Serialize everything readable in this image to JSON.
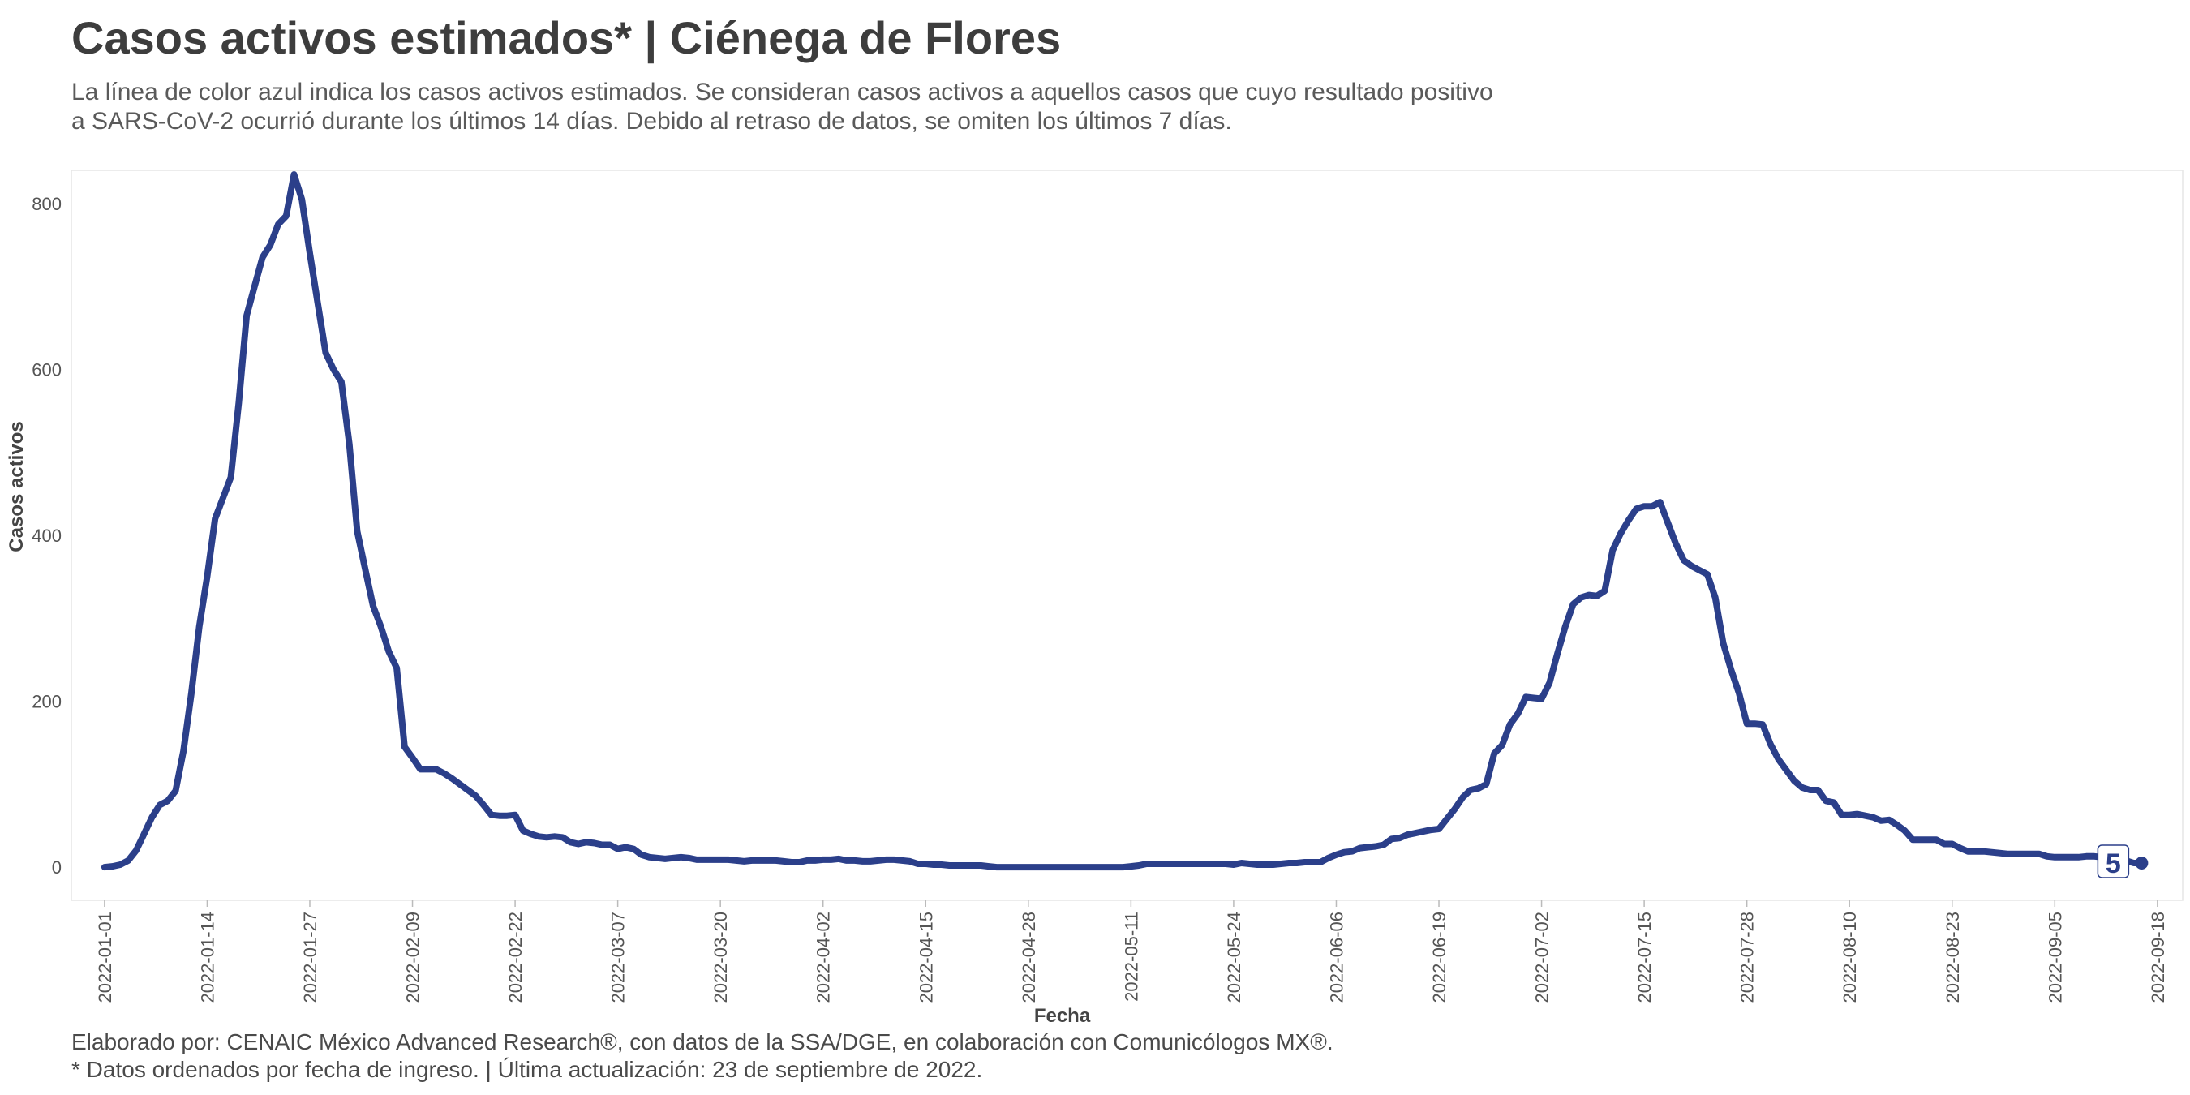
{
  "title": "Casos activos estimados* | Ciénega de Flores",
  "subtitle_lines": [
    "La línea de color azul indica los casos activos estimados. Se consideran casos activos a aquellos casos que cuyo resultado positivo",
    "a SARS-CoV-2 ocurrió durante los últimos 14 días. Debido al retraso de datos, se omiten los últimos 7 días."
  ],
  "caption_lines": [
    "Elaborado por: CENAIC México Advanced Research®, con datos de la SSA/DGE, en colaboración con Comunicólogos MX®.",
    "* Datos ordenados por fecha de ingreso. | Última actualización: 23 de septiembre de 2022."
  ],
  "chart_data": {
    "type": "line",
    "xlabel": "Fecha",
    "ylabel": "Casos activos",
    "ylim": [
      -40,
      840
    ],
    "yticks": [
      0,
      200,
      400,
      600,
      800
    ],
    "x_start": "2022-01-01",
    "xticks": [
      "2022-01-01",
      "2022-01-14",
      "2022-01-27",
      "2022-02-09",
      "2022-02-22",
      "2022-03-07",
      "2022-03-20",
      "2022-04-02",
      "2022-04-15",
      "2022-04-28",
      "2022-05-11",
      "2022-05-24",
      "2022-06-06",
      "2022-06-19",
      "2022-07-02",
      "2022-07-15",
      "2022-07-28",
      "2022-08-10",
      "2022-08-23",
      "2022-09-05",
      "2022-09-18"
    ],
    "grid": false,
    "line_color": "#2b3f8a",
    "last_label": "5",
    "series": [
      {
        "points": [
          [
            "2022-01-01",
            0
          ],
          [
            "2022-01-02",
            1
          ],
          [
            "2022-01-03",
            3
          ],
          [
            "2022-01-04",
            8
          ],
          [
            "2022-01-05",
            20
          ],
          [
            "2022-01-06",
            40
          ],
          [
            "2022-01-07",
            60
          ],
          [
            "2022-01-08",
            75
          ],
          [
            "2022-01-09",
            80
          ],
          [
            "2022-01-10",
            92
          ],
          [
            "2022-01-11",
            140
          ],
          [
            "2022-01-12",
            210
          ],
          [
            "2022-01-13",
            290
          ],
          [
            "2022-01-14",
            350
          ],
          [
            "2022-01-15",
            420
          ],
          [
            "2022-01-16",
            445
          ],
          [
            "2022-01-17",
            470
          ],
          [
            "2022-01-18",
            560
          ],
          [
            "2022-01-19",
            665
          ],
          [
            "2022-01-20",
            700
          ],
          [
            "2022-01-21",
            735
          ],
          [
            "2022-01-22",
            750
          ],
          [
            "2022-01-23",
            775
          ],
          [
            "2022-01-24",
            785
          ],
          [
            "2022-01-25",
            835
          ],
          [
            "2022-01-26",
            805
          ],
          [
            "2022-01-27",
            740
          ],
          [
            "2022-01-28",
            680
          ],
          [
            "2022-01-29",
            620
          ],
          [
            "2022-01-30",
            600
          ],
          [
            "2022-01-31",
            585
          ],
          [
            "2022-02-01",
            510
          ],
          [
            "2022-02-02",
            405
          ],
          [
            "2022-02-03",
            360
          ],
          [
            "2022-02-04",
            315
          ],
          [
            "2022-02-05",
            290
          ],
          [
            "2022-02-06",
            260
          ],
          [
            "2022-02-07",
            240
          ],
          [
            "2022-02-08",
            145
          ],
          [
            "2022-02-09",
            132
          ],
          [
            "2022-02-10",
            118
          ],
          [
            "2022-02-11",
            118
          ],
          [
            "2022-02-12",
            118
          ],
          [
            "2022-02-13",
            113
          ],
          [
            "2022-02-14",
            107
          ],
          [
            "2022-02-15",
            100
          ],
          [
            "2022-02-16",
            93
          ],
          [
            "2022-02-17",
            86
          ],
          [
            "2022-02-18",
            75
          ],
          [
            "2022-02-19",
            63
          ],
          [
            "2022-02-20",
            62
          ],
          [
            "2022-02-21",
            62
          ],
          [
            "2022-02-22",
            63
          ],
          [
            "2022-02-23",
            44
          ],
          [
            "2022-02-24",
            40
          ],
          [
            "2022-02-25",
            37
          ],
          [
            "2022-02-26",
            36
          ],
          [
            "2022-02-27",
            37
          ],
          [
            "2022-02-28",
            36
          ],
          [
            "2022-03-01",
            30
          ],
          [
            "2022-03-02",
            28
          ],
          [
            "2022-03-03",
            30
          ],
          [
            "2022-03-04",
            29
          ],
          [
            "2022-03-05",
            27
          ],
          [
            "2022-03-06",
            27
          ],
          [
            "2022-03-07",
            22
          ],
          [
            "2022-03-08",
            24
          ],
          [
            "2022-03-09",
            22
          ],
          [
            "2022-03-10",
            15
          ],
          [
            "2022-03-11",
            12
          ],
          [
            "2022-03-12",
            11
          ],
          [
            "2022-03-13",
            10
          ],
          [
            "2022-03-14",
            11
          ],
          [
            "2022-03-15",
            12
          ],
          [
            "2022-03-16",
            11
          ],
          [
            "2022-03-17",
            9
          ],
          [
            "2022-03-18",
            9
          ],
          [
            "2022-03-19",
            9
          ],
          [
            "2022-03-20",
            9
          ],
          [
            "2022-03-21",
            9
          ],
          [
            "2022-03-22",
            8
          ],
          [
            "2022-03-23",
            7
          ],
          [
            "2022-03-24",
            8
          ],
          [
            "2022-03-25",
            8
          ],
          [
            "2022-03-26",
            8
          ],
          [
            "2022-03-27",
            8
          ],
          [
            "2022-03-28",
            7
          ],
          [
            "2022-03-29",
            6
          ],
          [
            "2022-03-30",
            6
          ],
          [
            "2022-03-31",
            8
          ],
          [
            "2022-04-01",
            8
          ],
          [
            "2022-04-02",
            9
          ],
          [
            "2022-04-03",
            9
          ],
          [
            "2022-04-04",
            10
          ],
          [
            "2022-04-05",
            8
          ],
          [
            "2022-04-06",
            8
          ],
          [
            "2022-04-07",
            7
          ],
          [
            "2022-04-08",
            7
          ],
          [
            "2022-04-09",
            8
          ],
          [
            "2022-04-10",
            9
          ],
          [
            "2022-04-11",
            9
          ],
          [
            "2022-04-12",
            8
          ],
          [
            "2022-04-13",
            7
          ],
          [
            "2022-04-14",
            4
          ],
          [
            "2022-04-15",
            4
          ],
          [
            "2022-04-16",
            3
          ],
          [
            "2022-04-17",
            3
          ],
          [
            "2022-04-18",
            2
          ],
          [
            "2022-04-19",
            2
          ],
          [
            "2022-04-20",
            2
          ],
          [
            "2022-04-21",
            2
          ],
          [
            "2022-04-22",
            2
          ],
          [
            "2022-04-23",
            1
          ],
          [
            "2022-04-24",
            0
          ],
          [
            "2022-04-25",
            0
          ],
          [
            "2022-04-26",
            0
          ],
          [
            "2022-04-27",
            0
          ],
          [
            "2022-04-28",
            0
          ],
          [
            "2022-04-29",
            0
          ],
          [
            "2022-04-30",
            0
          ],
          [
            "2022-05-01",
            0
          ],
          [
            "2022-05-02",
            0
          ],
          [
            "2022-05-03",
            0
          ],
          [
            "2022-05-04",
            0
          ],
          [
            "2022-05-05",
            0
          ],
          [
            "2022-05-06",
            0
          ],
          [
            "2022-05-07",
            0
          ],
          [
            "2022-05-08",
            0
          ],
          [
            "2022-05-09",
            0
          ],
          [
            "2022-05-10",
            0
          ],
          [
            "2022-05-11",
            1
          ],
          [
            "2022-05-12",
            2
          ],
          [
            "2022-05-13",
            4
          ],
          [
            "2022-05-14",
            4
          ],
          [
            "2022-05-15",
            4
          ],
          [
            "2022-05-16",
            4
          ],
          [
            "2022-05-17",
            4
          ],
          [
            "2022-05-18",
            4
          ],
          [
            "2022-05-19",
            4
          ],
          [
            "2022-05-20",
            4
          ],
          [
            "2022-05-21",
            4
          ],
          [
            "2022-05-22",
            4
          ],
          [
            "2022-05-23",
            4
          ],
          [
            "2022-05-24",
            3
          ],
          [
            "2022-05-25",
            5
          ],
          [
            "2022-05-26",
            4
          ],
          [
            "2022-05-27",
            3
          ],
          [
            "2022-05-28",
            3
          ],
          [
            "2022-05-29",
            3
          ],
          [
            "2022-05-30",
            4
          ],
          [
            "2022-05-31",
            5
          ],
          [
            "2022-06-01",
            5
          ],
          [
            "2022-06-02",
            6
          ],
          [
            "2022-06-03",
            6
          ],
          [
            "2022-06-04",
            6
          ],
          [
            "2022-06-05",
            11
          ],
          [
            "2022-06-06",
            15
          ],
          [
            "2022-06-07",
            18
          ],
          [
            "2022-06-08",
            19
          ],
          [
            "2022-06-09",
            23
          ],
          [
            "2022-06-10",
            24
          ],
          [
            "2022-06-11",
            25
          ],
          [
            "2022-06-12",
            27
          ],
          [
            "2022-06-13",
            34
          ],
          [
            "2022-06-14",
            35
          ],
          [
            "2022-06-15",
            39
          ],
          [
            "2022-06-16",
            41
          ],
          [
            "2022-06-17",
            43
          ],
          [
            "2022-06-18",
            45
          ],
          [
            "2022-06-19",
            46
          ],
          [
            "2022-06-20",
            58
          ],
          [
            "2022-06-21",
            70
          ],
          [
            "2022-06-22",
            84
          ],
          [
            "2022-06-23",
            93
          ],
          [
            "2022-06-24",
            95
          ],
          [
            "2022-06-25",
            100
          ],
          [
            "2022-06-26",
            137
          ],
          [
            "2022-06-27",
            147
          ],
          [
            "2022-06-28",
            172
          ],
          [
            "2022-06-29",
            185
          ],
          [
            "2022-06-30",
            205
          ],
          [
            "2022-07-01",
            204
          ],
          [
            "2022-07-02",
            203
          ],
          [
            "2022-07-03",
            222
          ],
          [
            "2022-07-04",
            257
          ],
          [
            "2022-07-05",
            290
          ],
          [
            "2022-07-06",
            317
          ],
          [
            "2022-07-07",
            325
          ],
          [
            "2022-07-08",
            328
          ],
          [
            "2022-07-09",
            327
          ],
          [
            "2022-07-10",
            333
          ],
          [
            "2022-07-11",
            382
          ],
          [
            "2022-07-12",
            402
          ],
          [
            "2022-07-13",
            418
          ],
          [
            "2022-07-14",
            432
          ],
          [
            "2022-07-15",
            435
          ],
          [
            "2022-07-16",
            435
          ],
          [
            "2022-07-17",
            440
          ],
          [
            "2022-07-18",
            415
          ],
          [
            "2022-07-19",
            390
          ],
          [
            "2022-07-20",
            370
          ],
          [
            "2022-07-21",
            363
          ],
          [
            "2022-07-22",
            358
          ],
          [
            "2022-07-23",
            353
          ],
          [
            "2022-07-24",
            325
          ],
          [
            "2022-07-25",
            270
          ],
          [
            "2022-07-26",
            238
          ],
          [
            "2022-07-27",
            210
          ],
          [
            "2022-07-28",
            173
          ],
          [
            "2022-07-29",
            173
          ],
          [
            "2022-07-30",
            172
          ],
          [
            "2022-07-31",
            148
          ],
          [
            "2022-08-01",
            130
          ],
          [
            "2022-08-02",
            117
          ],
          [
            "2022-08-03",
            104
          ],
          [
            "2022-08-04",
            96
          ],
          [
            "2022-08-05",
            93
          ],
          [
            "2022-08-06",
            93
          ],
          [
            "2022-08-07",
            80
          ],
          [
            "2022-08-08",
            78
          ],
          [
            "2022-08-09",
            63
          ],
          [
            "2022-08-10",
            63
          ],
          [
            "2022-08-11",
            64
          ],
          [
            "2022-08-12",
            62
          ],
          [
            "2022-08-13",
            60
          ],
          [
            "2022-08-14",
            56
          ],
          [
            "2022-08-15",
            57
          ],
          [
            "2022-08-16",
            51
          ],
          [
            "2022-08-17",
            44
          ],
          [
            "2022-08-18",
            33
          ],
          [
            "2022-08-19",
            33
          ],
          [
            "2022-08-20",
            33
          ],
          [
            "2022-08-21",
            33
          ],
          [
            "2022-08-22",
            28
          ],
          [
            "2022-08-23",
            28
          ],
          [
            "2022-08-24",
            23
          ],
          [
            "2022-08-25",
            19
          ],
          [
            "2022-08-26",
            19
          ],
          [
            "2022-08-27",
            19
          ],
          [
            "2022-08-28",
            18
          ],
          [
            "2022-08-29",
            17
          ],
          [
            "2022-08-30",
            16
          ],
          [
            "2022-08-31",
            16
          ],
          [
            "2022-09-01",
            16
          ],
          [
            "2022-09-02",
            16
          ],
          [
            "2022-09-03",
            16
          ],
          [
            "2022-09-04",
            13
          ],
          [
            "2022-09-05",
            12
          ],
          [
            "2022-09-06",
            12
          ],
          [
            "2022-09-07",
            12
          ],
          [
            "2022-09-08",
            12
          ],
          [
            "2022-09-09",
            13
          ],
          [
            "2022-09-10",
            13
          ],
          [
            "2022-09-11",
            12
          ],
          [
            "2022-09-12",
            11
          ],
          [
            "2022-09-13",
            10
          ],
          [
            "2022-09-14",
            8
          ],
          [
            "2022-09-15",
            5
          ],
          [
            "2022-09-16",
            5
          ]
        ]
      }
    ]
  }
}
